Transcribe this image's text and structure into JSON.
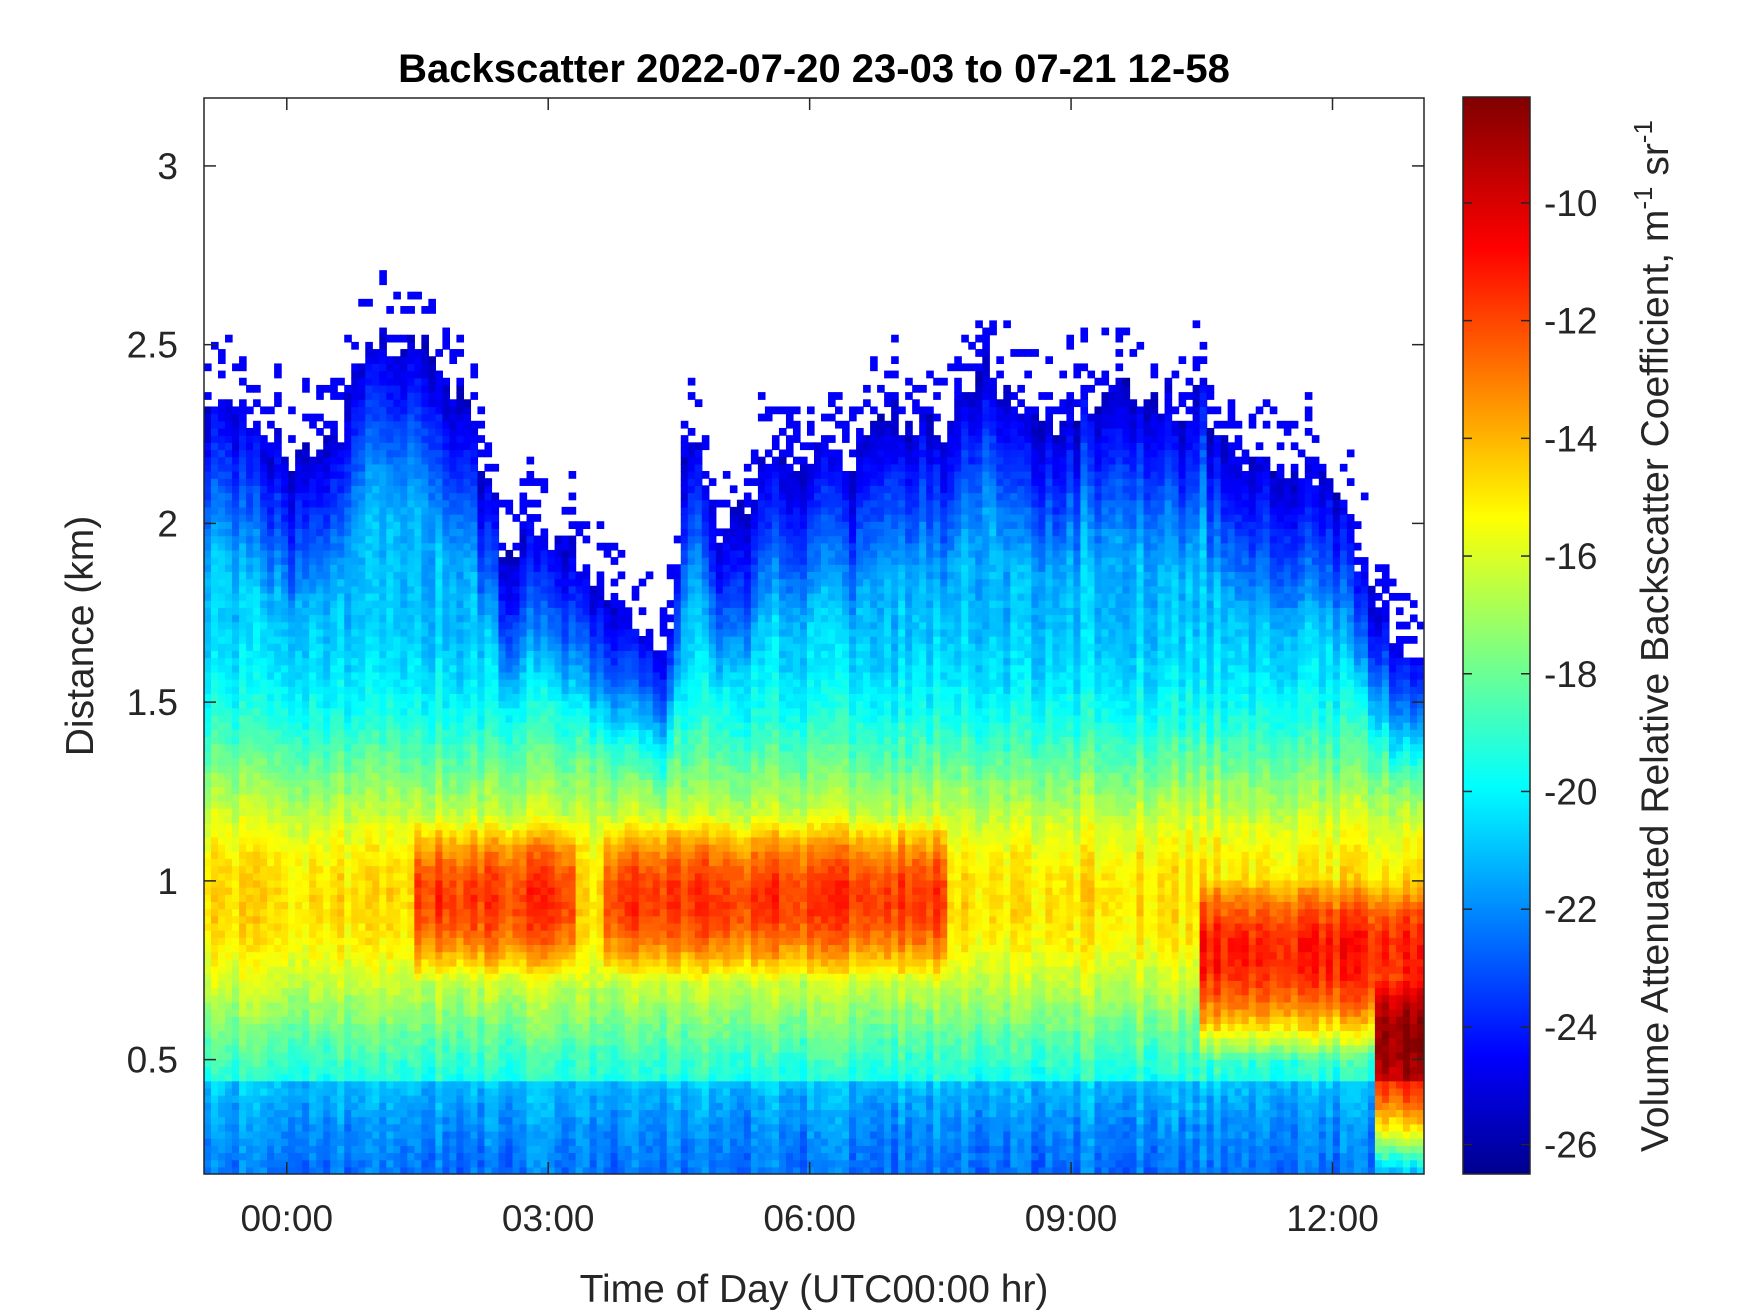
{
  "chart_data": {
    "type": "heatmap",
    "title": "Backscatter 2022-07-20 23-03 to 07-21 12-58",
    "xlabel": "Time of Day (UTC00:00 hr)",
    "ylabel": "Distance (km)",
    "xlim": [
      -0.95,
      13.05
    ],
    "ylim": [
      0.18,
      3.19
    ],
    "xticks": [
      {
        "value": 0,
        "label": "00:00"
      },
      {
        "value": 3,
        "label": "03:00"
      },
      {
        "value": 6,
        "label": "06:00"
      },
      {
        "value": 9,
        "label": "09:00"
      },
      {
        "value": 12,
        "label": "12:00"
      }
    ],
    "yticks": [
      {
        "value": 0.5,
        "label": "0.5"
      },
      {
        "value": 1.0,
        "label": "1"
      },
      {
        "value": 1.5,
        "label": "1.5"
      },
      {
        "value": 2.0,
        "label": "2"
      },
      {
        "value": 2.5,
        "label": "2.5"
      },
      {
        "value": 3.0,
        "label": "3"
      }
    ],
    "colorbar": {
      "label": "Volume Attenuated Relative Backscatter Coefficient, m",
      "label_sup1": "-1",
      "label_mid": " sr",
      "label_sup2": "-1",
      "colormap": "jet",
      "clim": [
        -26.5,
        -8.2
      ],
      "ticks": [
        {
          "value": -10,
          "label": "-10"
        },
        {
          "value": -12,
          "label": "-12"
        },
        {
          "value": -14,
          "label": "-14"
        },
        {
          "value": -16,
          "label": "-16"
        },
        {
          "value": -18,
          "label": "-18"
        },
        {
          "value": -20,
          "label": "-20"
        },
        {
          "value": -22,
          "label": "-22"
        },
        {
          "value": -24,
          "label": "-24"
        },
        {
          "value": -26,
          "label": "-26"
        }
      ]
    },
    "top_of_signal_km": {
      "x": [
        -0.95,
        -0.5,
        0,
        0.5,
        1.0,
        1.5,
        2.0,
        2.5,
        3.0,
        3.5,
        4.0,
        4.4,
        4.6,
        5.0,
        5.5,
        6.0,
        6.5,
        7.0,
        7.5,
        8.0,
        8.5,
        9.0,
        9.5,
        10.0,
        10.5,
        11.0,
        11.5,
        12.0,
        12.5,
        13.05
      ],
      "y": [
        2.3,
        2.3,
        2.2,
        2.2,
        2.5,
        2.5,
        2.35,
        1.95,
        2.0,
        1.85,
        1.75,
        1.65,
        2.3,
        1.95,
        2.15,
        2.2,
        2.2,
        2.3,
        2.25,
        2.45,
        2.3,
        2.3,
        2.4,
        2.35,
        2.35,
        2.2,
        2.15,
        2.1,
        1.8,
        1.6
      ]
    },
    "aerosol_layer_core": [
      {
        "x_start": 1.5,
        "x_end": 3.3,
        "y_center": 0.95,
        "value": -11.5
      },
      {
        "x_start": 3.6,
        "x_end": 7.6,
        "y_center": 0.95,
        "value": -11.5
      },
      {
        "x_start": 10.5,
        "x_end": 13.05,
        "y_center": 0.8,
        "value": -11.0
      },
      {
        "x_start": 12.5,
        "x_end": 13.05,
        "y_center": 0.55,
        "value": -8.5
      }
    ]
  }
}
